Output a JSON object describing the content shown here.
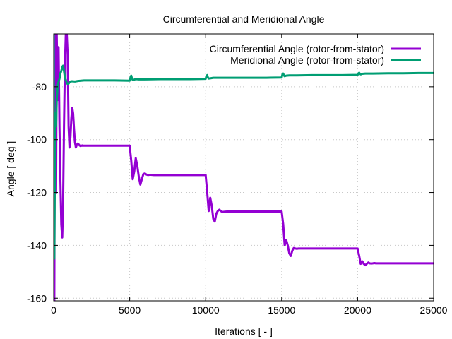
{
  "chart_data": {
    "type": "line",
    "title": "Circumferential and Meridional Angle",
    "xlabel": "Iterations [ - ]",
    "ylabel": "Angle [ deg ]",
    "xlim": [
      0,
      25000
    ],
    "ylim": [
      -161,
      -60
    ],
    "x_ticks": [
      0,
      5000,
      10000,
      15000,
      20000,
      25000
    ],
    "y_ticks": [
      -80,
      -100,
      -120,
      -140,
      -160
    ],
    "grid": true,
    "legend_position": "top-right",
    "series": [
      {
        "name": "Circumferential Angle (rotor-from-stator)",
        "color": "#9400d3",
        "x": [
          0,
          40,
          80,
          120,
          160,
          200,
          260,
          320,
          380,
          440,
          500,
          560,
          620,
          680,
          740,
          800,
          860,
          920,
          980,
          1040,
          1100,
          1160,
          1220,
          1280,
          1340,
          1400,
          1460,
          1520,
          1580,
          1640,
          1700,
          1760,
          1820,
          1880,
          1940,
          2000,
          2100,
          2200,
          2300,
          2400,
          2500,
          2600,
          2800,
          3000,
          3500,
          4000,
          4500,
          5000,
          5100,
          5200,
          5300,
          5400,
          5500,
          5600,
          5700,
          5800,
          5900,
          6000,
          6100,
          6200,
          6300,
          6400,
          6600,
          6800,
          7000,
          8000,
          9000,
          10000,
          10100,
          10200,
          10300,
          10400,
          10500,
          10600,
          10700,
          10800,
          10900,
          11000,
          11100,
          11200,
          11400,
          11600,
          12000,
          13000,
          14000,
          15000,
          15100,
          15200,
          15300,
          15400,
          15500,
          15600,
          15700,
          15800,
          15900,
          16000,
          16100,
          16200,
          16400,
          16600,
          17000,
          18000,
          19000,
          20000,
          20100,
          20200,
          20300,
          20400,
          20500,
          20600,
          20700,
          20800,
          20900,
          21000,
          21100,
          21200,
          21400,
          21600,
          22000,
          23000,
          24000,
          25000
        ],
        "values": [
          -60,
          -161,
          -70,
          -60,
          -120,
          -60,
          -85,
          -65,
          -95,
          -115,
          -132,
          -137,
          -125,
          -95,
          -72,
          -60,
          -60,
          -68,
          -95,
          -103,
          -99,
          -92,
          -88,
          -90,
          -96,
          -101,
          -103,
          -102,
          -101.5,
          -101.8,
          -102.2,
          -102.4,
          -102.3,
          -102.2,
          -102.3,
          -102.3,
          -102.3,
          -102.3,
          -102.3,
          -102.3,
          -102.3,
          -102.3,
          -102.3,
          -102.3,
          -102.3,
          -102.3,
          -102.3,
          -102.3,
          -108,
          -115,
          -112,
          -107,
          -110,
          -114,
          -117,
          -115,
          -113,
          -112.8,
          -113.2,
          -113.4,
          -113.3,
          -113.3,
          -113.4,
          -113.4,
          -113.4,
          -113.4,
          -113.4,
          -113.4,
          -120,
          -127,
          -122,
          -125,
          -130,
          -131,
          -128,
          -127,
          -126.5,
          -127,
          -127.4,
          -127.3,
          -127.2,
          -127.2,
          -127.2,
          -127.2,
          -127.2,
          -127.2,
          -132,
          -140,
          -138,
          -140,
          -143,
          -144,
          -142,
          -141,
          -141.2,
          -141.3,
          -141.2,
          -141.2,
          -141.2,
          -141.2,
          -141.2,
          -141.2,
          -141.2,
          -141.2,
          -144,
          -147,
          -146,
          -147,
          -147.5,
          -147,
          -146.5,
          -146.8,
          -146.9,
          -146.8,
          -146.7,
          -146.8,
          -146.8,
          -146.8,
          -146.8,
          -146.8,
          -146.8,
          -146.8
        ]
      },
      {
        "name": "Meridional Angle (rotor-from-stator)",
        "color": "#009e73",
        "x": [
          0,
          40,
          80,
          120,
          160,
          200,
          260,
          320,
          380,
          440,
          500,
          560,
          620,
          680,
          740,
          800,
          860,
          920,
          980,
          1040,
          1100,
          1200,
          1400,
          1600,
          1800,
          2000,
          2500,
          3000,
          4000,
          5000,
          5050,
          5100,
          5150,
          5200,
          5300,
          5400,
          5600,
          6000,
          7000,
          8000,
          9000,
          10000,
          10050,
          10100,
          10150,
          10200,
          10300,
          10500,
          11000,
          12000,
          13000,
          14000,
          15000,
          15050,
          15100,
          15150,
          15200,
          15300,
          15500,
          16000,
          17000,
          18000,
          19000,
          20000,
          20050,
          20100,
          20150,
          20200,
          20300,
          20500,
          21000,
          22000,
          23000,
          24000,
          25000
        ],
        "values": [
          -60,
          -145,
          -110,
          -90,
          -95,
          -85,
          -80,
          -78,
          -77,
          -75,
          -74,
          -72.5,
          -72,
          -74,
          -76.5,
          -77.5,
          -78.5,
          -79,
          -78.8,
          -78.3,
          -78,
          -77.9,
          -78,
          -77.8,
          -77.7,
          -77.6,
          -77.6,
          -77.6,
          -77.6,
          -77.7,
          -76.5,
          -75.8,
          -76.8,
          -77.4,
          -77.3,
          -77.1,
          -77.2,
          -77.2,
          -77.1,
          -77.1,
          -77.1,
          -77,
          -75.9,
          -75.6,
          -76.5,
          -76.9,
          -76.8,
          -76.6,
          -76.6,
          -76.6,
          -76.6,
          -76.6,
          -76.5,
          -75.3,
          -75,
          -75.7,
          -76,
          -75.8,
          -75.7,
          -75.7,
          -75.6,
          -75.6,
          -75.6,
          -75.5,
          -74.9,
          -74.7,
          -75.1,
          -75.3,
          -75.1,
          -75,
          -75,
          -74.9,
          -74.9,
          -74.8,
          -74.8
        ]
      }
    ]
  }
}
